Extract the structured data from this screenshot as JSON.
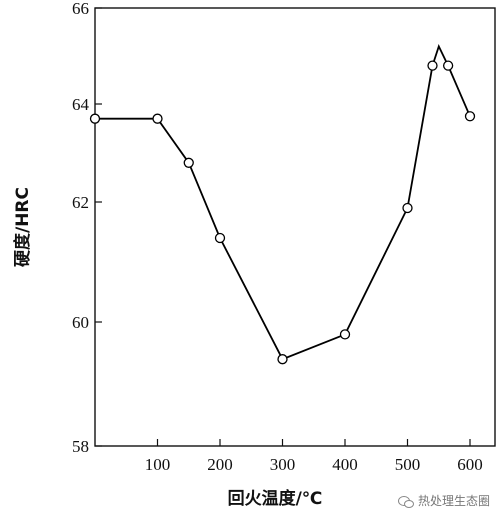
{
  "chart_data": {
    "type": "line",
    "title": "",
    "xlabel": "回火温度/℃",
    "ylabel": "硬度/HRC",
    "xlim": [
      0,
      640
    ],
    "ylim": [
      58,
      66
    ],
    "x_ticks": [
      100,
      200,
      300,
      400,
      500,
      600
    ],
    "y_ticks": [
      58,
      60,
      62,
      64,
      66
    ],
    "grid": false,
    "series": [
      {
        "line": [
          {
            "x": 0,
            "y": 63.7
          },
          {
            "x": 100,
            "y": 63.7
          },
          {
            "x": 150,
            "y": 62.8
          },
          {
            "x": 200,
            "y": 61.4
          },
          {
            "x": 300,
            "y": 59.4
          },
          {
            "x": 400,
            "y": 59.8
          },
          {
            "x": 500,
            "y": 61.9
          },
          {
            "x": 540,
            "y": 64.8
          },
          {
            "x": 550,
            "y": 65.2
          },
          {
            "x": 565,
            "y": 64.8
          },
          {
            "x": 600,
            "y": 63.75
          }
        ],
        "markers": [
          {
            "x": 0,
            "y": 63.7
          },
          {
            "x": 100,
            "y": 63.7
          },
          {
            "x": 150,
            "y": 62.8
          },
          {
            "x": 200,
            "y": 61.4
          },
          {
            "x": 300,
            "y": 59.4
          },
          {
            "x": 400,
            "y": 59.8
          },
          {
            "x": 500,
            "y": 61.9
          },
          {
            "x": 540,
            "y": 64.8
          },
          {
            "x": 565,
            "y": 64.8
          },
          {
            "x": 600,
            "y": 63.75
          }
        ],
        "color": "#000000",
        "marker": "open-circle"
      }
    ]
  },
  "watermark": {
    "text": "热处理生态圈",
    "icon": "wechat-icon"
  }
}
